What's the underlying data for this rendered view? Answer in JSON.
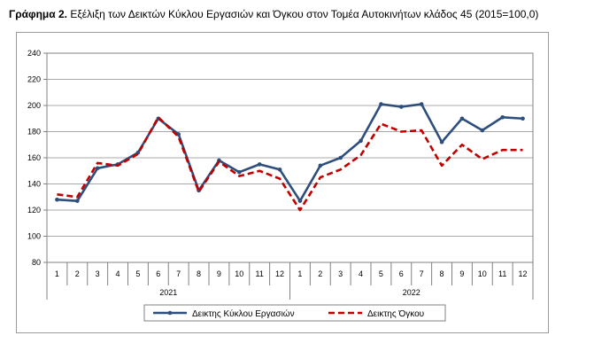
{
  "title": {
    "prefix": "Γράφημα 2.",
    "text": "Εξέλιξη των Δεικτών Κύκλου Εργασιών και Όγκου στον Τομέα Αυτοκινήτων κλάδος 45 (2015=100,0)"
  },
  "chart_data": {
    "type": "line",
    "title": "Γράφημα 2. Εξέλιξη των Δεικτών Κύκλου Εργασιών και Όγκου στον Τομέα Αυτοκινήτων κλάδος 45 (2015=100,0)",
    "months": [
      "1",
      "2",
      "3",
      "4",
      "5",
      "6",
      "7",
      "8",
      "9",
      "10",
      "11",
      "12",
      "1",
      "2",
      "3",
      "4",
      "5",
      "6",
      "7",
      "8",
      "9",
      "10",
      "11",
      "12"
    ],
    "years": [
      {
        "label": "2021",
        "start": 0,
        "end": 11
      },
      {
        "label": "2022",
        "start": 12,
        "end": 23
      }
    ],
    "ylim": [
      80,
      240
    ],
    "yticks": [
      80,
      100,
      120,
      140,
      160,
      180,
      200,
      220,
      240
    ],
    "grid": true,
    "legend": "bottom",
    "series": [
      {
        "name": "Δεικτης Κύκλου Εργασιών",
        "color": "#2e4e7e",
        "style": "solid-marker",
        "values": [
          128,
          127,
          152,
          155,
          164,
          190,
          178,
          135,
          158,
          149,
          155,
          151,
          127,
          154,
          160,
          173,
          201,
          199,
          201,
          172,
          190,
          181,
          191,
          190
        ]
      },
      {
        "name": "Δεικτης Όγκου",
        "color": "#c00000",
        "style": "dashed",
        "values": [
          132,
          130,
          156,
          154,
          163,
          191,
          176,
          134,
          157,
          146,
          150,
          144,
          120,
          145,
          151,
          162,
          186,
          180,
          181,
          154,
          170,
          159,
          166,
          166
        ]
      }
    ]
  }
}
